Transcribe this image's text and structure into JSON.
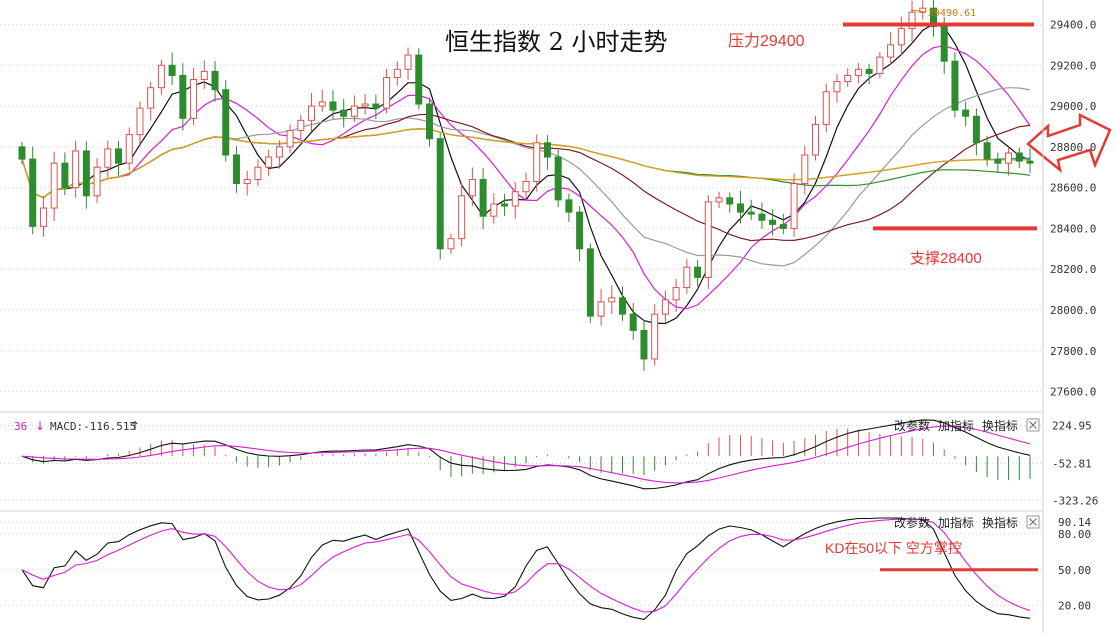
{
  "chart_data": {
    "type": "candlestick",
    "title": "恒生指数 2 小时走势",
    "annotations": {
      "resistance": {
        "label": "压力29400",
        "value": 29400
      },
      "support": {
        "label": "支撑28400",
        "value": 28400
      },
      "peak": {
        "label": "29490.61",
        "value": 29490.61
      },
      "kd_note": {
        "label": "KD在50以下  空方掌控",
        "value": 50
      }
    },
    "price_axis": {
      "ylim": [
        27500,
        29520
      ],
      "ticks": [
        "29400.0",
        "29200.0",
        "29000.0",
        "28800.0",
        "28600.0",
        "28400.0",
        "28200.0",
        "28000.0",
        "27800.0",
        "27600.0"
      ]
    },
    "macd_axis": {
      "ylim": [
        -380,
        280
      ],
      "ticks": [
        "224.95",
        "-52.81",
        "-323.26"
      ]
    },
    "kd_axis": {
      "ylim": [
        12,
        96
      ],
      "ticks": [
        "90.14",
        "80.00",
        "50.00",
        "20.00"
      ]
    },
    "macd_label": "MACD:-116.515",
    "macd_prefix": "36",
    "closes": [
      28740,
      28410,
      28500,
      28720,
      28600,
      28780,
      28560,
      28700,
      28790,
      28720,
      28860,
      28990,
      29090,
      29200,
      29150,
      28940,
      29130,
      29170,
      29080,
      28760,
      28620,
      28640,
      28700,
      28750,
      28800,
      28880,
      28930,
      29000,
      29020,
      28980,
      28950,
      29000,
      29010,
      28990,
      29140,
      29180,
      29250,
      29010,
      28840,
      28300,
      28350,
      28560,
      28640,
      28460,
      28520,
      28510,
      28580,
      28630,
      28820,
      28750,
      28540,
      28480,
      28300,
      27970,
      28040,
      28060,
      27980,
      27900,
      27760,
      27980,
      28050,
      28110,
      28210,
      28160,
      28530,
      28550,
      28520,
      28480,
      28470,
      28440,
      28420,
      28400,
      28620,
      28760,
      28910,
      29070,
      29120,
      29150,
      29180,
      29160,
      29240,
      29300,
      29380,
      29460,
      29480,
      29390,
      29220,
      28980,
      28950,
      28820,
      28740,
      28720,
      28770,
      28730,
      28720
    ]
  },
  "buttons": {
    "change": "改参数",
    "add": "加指标",
    "swap": "换指标"
  }
}
